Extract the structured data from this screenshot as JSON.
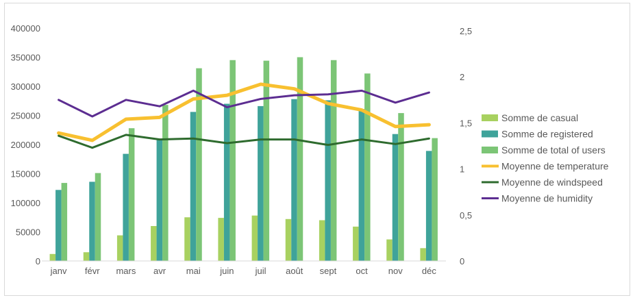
{
  "chart_data": {
    "type": "bar",
    "categories": [
      "janv",
      "févr",
      "mars",
      "avr",
      "mai",
      "juin",
      "juil",
      "août",
      "sept",
      "oct",
      "nov",
      "déc"
    ],
    "y_left": {
      "ylim": [
        0,
        400000
      ],
      "ticks": [
        "0",
        "50000",
        "100000",
        "150000",
        "200000",
        "250000",
        "300000",
        "350000",
        "400000"
      ]
    },
    "y_right": {
      "ylim": [
        0,
        2.5
      ],
      "ticks": [
        "0",
        "0,5",
        "1",
        "1,5",
        "2",
        "2,5"
      ]
    },
    "grid": false,
    "legend_position": "right",
    "series": [
      {
        "name": "Somme de casual",
        "kind": "bar",
        "axis": "left",
        "color": "#a8d160",
        "values": [
          12000,
          15000,
          44000,
          60000,
          75000,
          74000,
          78000,
          72000,
          70000,
          59000,
          37000,
          22000
        ]
      },
      {
        "name": "Somme de registered",
        "kind": "bar",
        "axis": "left",
        "color": "#3fa39a",
        "values": [
          122000,
          136000,
          184000,
          208000,
          256000,
          270000,
          266000,
          278000,
          276000,
          261000,
          218000,
          189000
        ]
      },
      {
        "name": "Somme de total of users",
        "kind": "bar",
        "axis": "left",
        "color": "#7cc576",
        "values": [
          134000,
          151000,
          228000,
          268000,
          331000,
          345000,
          344000,
          350000,
          345000,
          322000,
          254000,
          211000
        ]
      },
      {
        "name": "Moyenne de temperature",
        "kind": "line",
        "axis": "right",
        "color": "#f8c030",
        "width": 5,
        "values": [
          1.39,
          1.31,
          1.54,
          1.56,
          1.76,
          1.8,
          1.92,
          1.87,
          1.71,
          1.64,
          1.46,
          1.48
        ]
      },
      {
        "name": "Moyenne de windspeed",
        "kind": "line",
        "axis": "right",
        "color": "#2e6b2e",
        "width": 3,
        "values": [
          1.36,
          1.23,
          1.37,
          1.32,
          1.33,
          1.28,
          1.32,
          1.32,
          1.26,
          1.32,
          1.27,
          1.33
        ]
      },
      {
        "name": "Moyenne de humidity",
        "kind": "line",
        "axis": "right",
        "color": "#5c2d91",
        "width": 3,
        "values": [
          1.75,
          1.57,
          1.75,
          1.68,
          1.85,
          1.67,
          1.76,
          1.8,
          1.81,
          1.85,
          1.72,
          1.83
        ]
      }
    ]
  }
}
